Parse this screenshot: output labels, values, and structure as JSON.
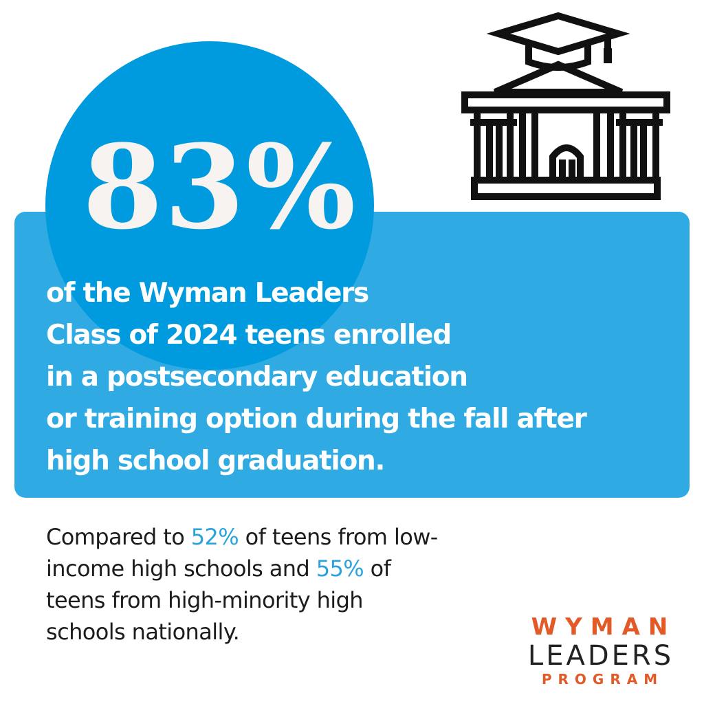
{
  "stat": {
    "value": "83%"
  },
  "statement": {
    "lines": [
      "of the Wyman Leaders",
      "Class of 2024 teens enrolled",
      "in a postsecondary education",
      "or training option during the fall after",
      "high school graduation."
    ]
  },
  "comparison": {
    "line1_before": "Compared to ",
    "line1_value": "52%",
    "line1_after": " of teens from low-",
    "line2_before": "income high schools and ",
    "line2_value": "55%",
    "line2_after": " of",
    "line3": "teens from high-minority high",
    "line4": "schools nationally."
  },
  "logo": {
    "line1": "WYMAN",
    "line2": "LEADERS",
    "line3": "PROGRAM"
  },
  "icons": {
    "building": "graduation-building-icon"
  },
  "colors": {
    "circle": "#009bde",
    "panel": "#2faae3",
    "highlight": "#2aa3dd",
    "logo_accent": "#e25a27"
  }
}
